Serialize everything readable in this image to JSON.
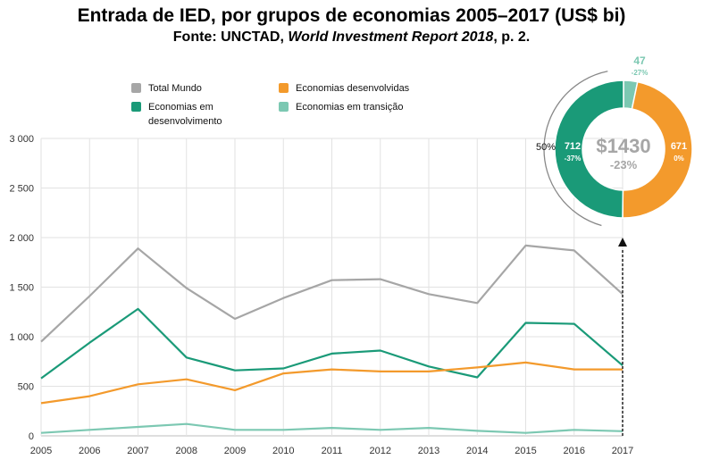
{
  "title": "Entrada de IED, por grupos de economias 2005–2017  (US$ bi)",
  "subtitle_prefix": "Fonte: UNCTAD, ",
  "subtitle_italic": "World Investment Report 2018",
  "subtitle_suffix": ", p. 2.",
  "chart_data": [
    {
      "type": "line",
      "x": [
        "2005",
        "2006",
        "2007",
        "2008",
        "2009",
        "2010",
        "2011",
        "2012",
        "2013",
        "2014",
        "2015",
        "2016",
        "2017"
      ],
      "ylim": [
        0,
        3000
      ],
      "yticks": [
        0,
        500,
        1000,
        1500,
        2000,
        2500,
        3000
      ],
      "ytick_labels": [
        "0",
        "500",
        "1 000",
        "1 500",
        "2 000",
        "2 500",
        "3 000"
      ],
      "grid": true,
      "legend_position": "top-left",
      "series": [
        {
          "name": "Total Mundo",
          "color": "#a6a6a6",
          "values": [
            950,
            1410,
            1890,
            1490,
            1180,
            1390,
            1570,
            1580,
            1430,
            1340,
            1920,
            1870,
            1430
          ]
        },
        {
          "name": "Economias  em desenvolvimento",
          "color": "#1a9a78",
          "values": [
            580,
            940,
            1280,
            790,
            660,
            680,
            830,
            860,
            700,
            590,
            1140,
            1130,
            710
          ]
        },
        {
          "name": "Economias  desenvolvidas",
          "color": "#f39a2c",
          "values": [
            330,
            400,
            520,
            570,
            460,
            630,
            670,
            650,
            650,
            690,
            740,
            670,
            670
          ]
        },
        {
          "name": "Economias  em transição",
          "color": "#7cc8b2",
          "values": [
            30,
            60,
            90,
            120,
            60,
            60,
            80,
            60,
            80,
            50,
            30,
            60,
            47
          ]
        }
      ]
    },
    {
      "type": "pie",
      "center_label": "$1430",
      "center_change": "-23%",
      "bracket_label": "50%",
      "slices": [
        {
          "name": "Economias  desenvolvidas",
          "value": 671,
          "label": "671",
          "change": "0%",
          "color": "#f39a2c"
        },
        {
          "name": "Economias  em desenvolvimento",
          "value": 712,
          "label": "712",
          "change": "-37%",
          "color": "#1a9a78"
        },
        {
          "name": "Economias  em transição",
          "value": 47,
          "label": "47",
          "change": "-27%",
          "color": "#7cc8b2"
        }
      ]
    }
  ]
}
